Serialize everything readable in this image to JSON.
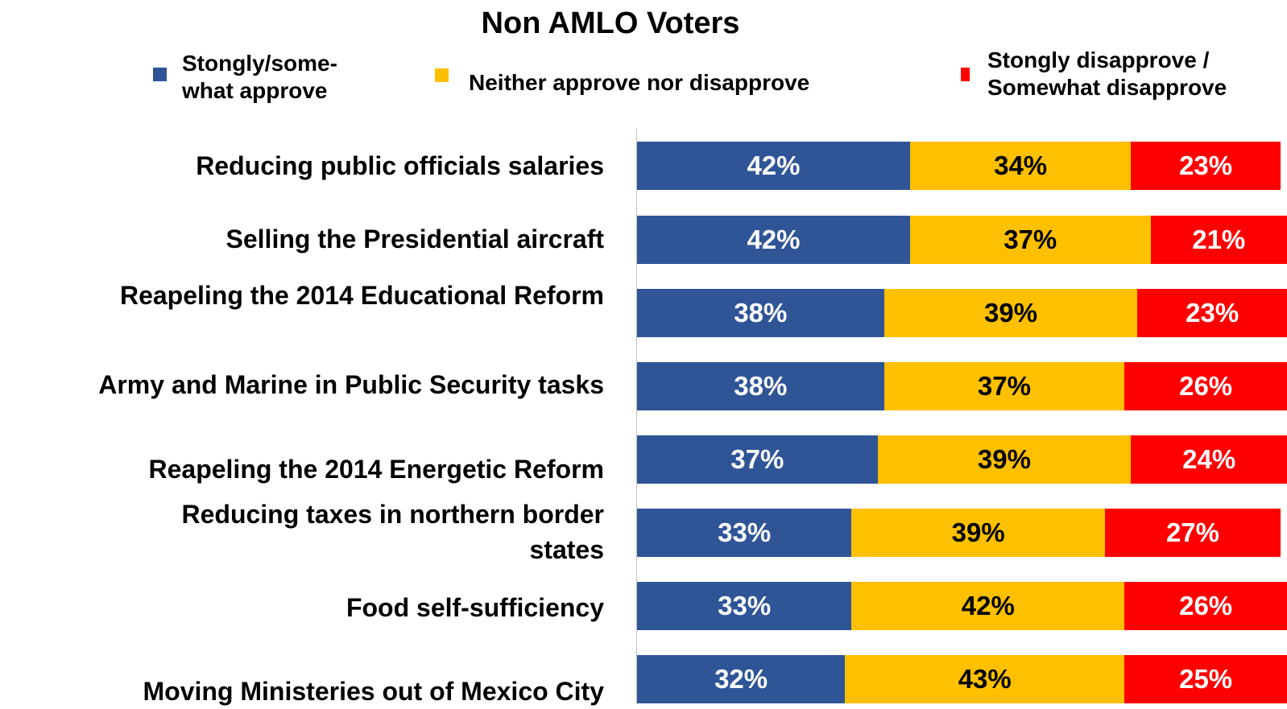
{
  "chart_data": {
    "type": "bar",
    "orientation": "horizontal",
    "stacked": true,
    "title": "Non AMLO Voters",
    "legend_position": "top",
    "categories": [
      "Reducing public officials salaries",
      "Selling the Presidential aircraft",
      "Reapeling the 2014 Educational Reform",
      "Army and Marine in Public Security tasks",
      "Reapeling the 2014 Energetic Reform",
      "Reducing taxes in northern border states",
      "Food self-sufficiency",
      "Moving Ministeries out of Mexico City"
    ],
    "series": [
      {
        "name": "Stongly/some-what approve",
        "color": "#2F5597",
        "label_color": "#FFFFFF",
        "values": [
          42,
          42,
          38,
          38,
          37,
          33,
          33,
          32
        ],
        "labels": [
          "42%",
          "42%",
          "38%",
          "38%",
          "37%",
          "33%",
          "33%",
          "32%"
        ]
      },
      {
        "name": "Neither approve nor disapprove",
        "color": "#FFC000",
        "label_color": "#000000",
        "values": [
          34,
          37,
          39,
          37,
          39,
          39,
          42,
          43
        ],
        "labels": [
          "34%",
          "37%",
          "39%",
          "37%",
          "39%",
          "39%",
          "42%",
          "43%"
        ]
      },
      {
        "name": "Stongly disapprove / Somewhat disapprove",
        "color": "#FF0000",
        "label_color": "#FFFFFF",
        "values": [
          23,
          21,
          23,
          26,
          24,
          27,
          26,
          25
        ],
        "labels": [
          "23%",
          "21%",
          "23%",
          "26%",
          "24%",
          "27%",
          "26%",
          "25%"
        ]
      }
    ],
    "legend": {
      "approve_line1": "Stongly/some-",
      "approve_line2": "what approve",
      "neither": "Neither approve nor disapprove",
      "disapprove_line1": "Stongly disapprove /",
      "disapprove_line2": "Somewhat disapprove"
    },
    "category_lines": [
      [
        "Reducing public officials salaries"
      ],
      [
        "Selling the Presidential aircraft"
      ],
      [
        "Reapeling the 2014 Educational Reform"
      ],
      [
        "Army and Marine in Public Security tasks"
      ],
      [
        "Reapeling the 2014 Energetic Reform"
      ],
      [
        "Reducing taxes in northern border",
        "states"
      ],
      [
        "Food self-sufficiency"
      ],
      [
        "Moving Ministeries out of Mexico City"
      ]
    ],
    "xlim": [
      0,
      100
    ]
  }
}
